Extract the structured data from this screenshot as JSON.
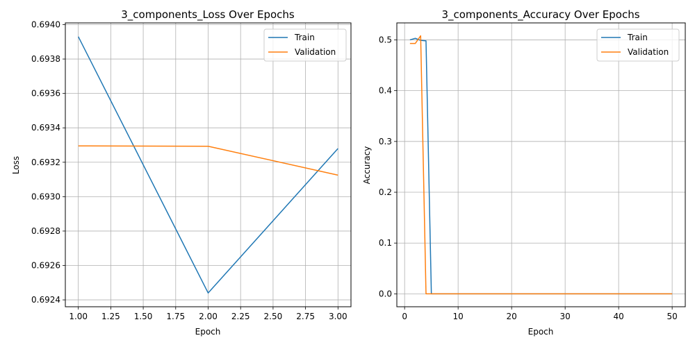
{
  "chart_data": [
    {
      "type": "line",
      "title": "3_components_Loss Over Epochs",
      "xlabel": "Epoch",
      "ylabel": "Loss",
      "xlim": [
        0.9,
        3.1
      ],
      "ylim": [
        0.69236,
        0.69401
      ],
      "xticks": [
        1.0,
        1.25,
        1.5,
        1.75,
        2.0,
        2.25,
        2.5,
        2.75,
        3.0
      ],
      "xtick_labels": [
        "1.00",
        "1.25",
        "1.50",
        "1.75",
        "2.00",
        "2.25",
        "2.50",
        "2.75",
        "3.00"
      ],
      "yticks": [
        0.6924,
        0.6926,
        0.6928,
        0.693,
        0.6932,
        0.6934,
        0.6936,
        0.6938,
        0.694
      ],
      "ytick_labels": [
        "0.6924",
        "0.6926",
        "0.6928",
        "0.6930",
        "0.6932",
        "0.6934",
        "0.6936",
        "0.6938",
        "0.6940"
      ],
      "grid": true,
      "legend_position": "upper right",
      "series": [
        {
          "name": "Train",
          "color": "#1f77b4",
          "x": [
            1,
            2,
            3
          ],
          "y": [
            0.69393,
            0.69244,
            0.69328
          ]
        },
        {
          "name": "Validation",
          "color": "#ff7f0e",
          "x": [
            1,
            2,
            3
          ],
          "y": [
            0.693295,
            0.693293,
            0.693125
          ]
        }
      ]
    },
    {
      "type": "line",
      "title": "3_components_Accuracy Over Epochs",
      "xlabel": "Epoch",
      "ylabel": "Accuracy",
      "xlim": [
        -1.45,
        52.45
      ],
      "ylim": [
        -0.0254,
        0.5334
      ],
      "xticks": [
        0,
        10,
        20,
        30,
        40,
        50
      ],
      "xtick_labels": [
        "0",
        "10",
        "20",
        "30",
        "40",
        "50"
      ],
      "yticks": [
        0.0,
        0.1,
        0.2,
        0.3,
        0.4,
        0.5
      ],
      "ytick_labels": [
        "0.0",
        "0.1",
        "0.2",
        "0.3",
        "0.4",
        "0.5"
      ],
      "grid": true,
      "legend_position": "upper right",
      "series": [
        {
          "name": "Train",
          "color": "#1f77b4",
          "x": [
            1,
            2,
            3,
            4,
            5,
            50
          ],
          "y": [
            0.5,
            0.503,
            0.499,
            0.498,
            0.0,
            0.0
          ]
        },
        {
          "name": "Validation",
          "color": "#ff7f0e",
          "x": [
            1,
            2,
            3,
            4,
            5,
            50
          ],
          "y": [
            0.493,
            0.493,
            0.508,
            0.0,
            0.0,
            0.0
          ]
        }
      ]
    }
  ]
}
